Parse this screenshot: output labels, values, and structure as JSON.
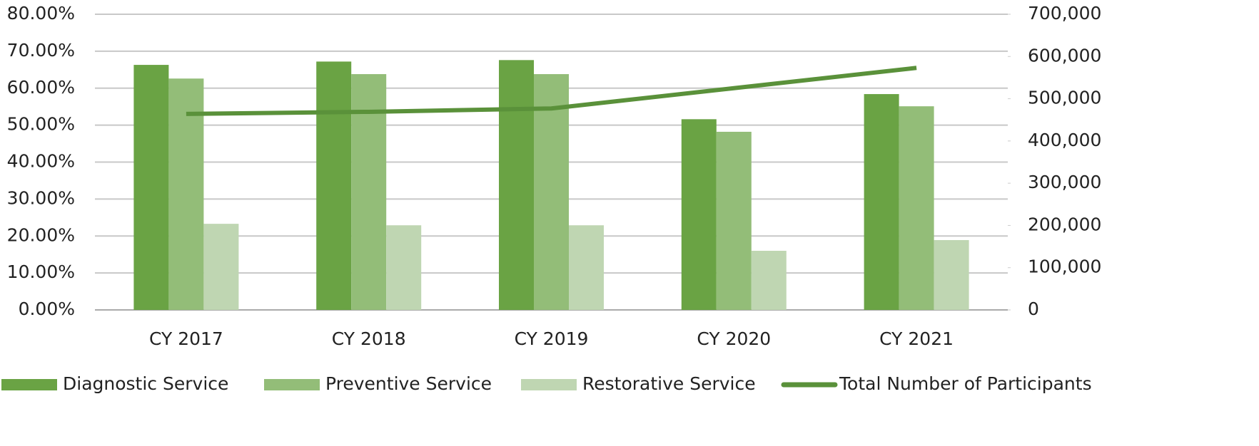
{
  "chart_data": {
    "type": "bar",
    "categories": [
      "CY 2017",
      "CY 2018",
      "CY 2019",
      "CY 2020",
      "CY 2021"
    ],
    "series": [
      {
        "name": "Diagnostic Service",
        "color": "#6aa344",
        "values": [
          66.3,
          67.2,
          67.6,
          51.6,
          58.4
        ]
      },
      {
        "name": "Preventive Service",
        "color": "#93bd78",
        "values": [
          62.6,
          63.8,
          63.8,
          48.2,
          55.1
        ]
      },
      {
        "name": "Restorative Service",
        "color": "#bfd6b2",
        "values": [
          23.3,
          22.9,
          22.9,
          16.0,
          18.9
        ]
      },
      {
        "name": "Total Number of Participants",
        "color": "#5a913a",
        "type": "line",
        "axis": "y2",
        "values": [
          464000,
          469000,
          477000,
          525000,
          573000
        ]
      }
    ],
    "ylim": [
      0,
      80
    ],
    "yticks": [
      {
        "value": 0,
        "label": "0.00%"
      },
      {
        "value": 10,
        "label": "10.00%"
      },
      {
        "value": 20,
        "label": "20.00%"
      },
      {
        "value": 30,
        "label": "30.00%"
      },
      {
        "value": 40,
        "label": "40.00%"
      },
      {
        "value": 50,
        "label": "50.00%"
      },
      {
        "value": 60,
        "label": "60.00%"
      },
      {
        "value": 70,
        "label": "70.00%"
      },
      {
        "value": 80,
        "label": "80.00%"
      }
    ],
    "y2lim": [
      0,
      700000
    ],
    "y2ticks": [
      0,
      {
        "value": 100000,
        "label": "100,000"
      },
      {
        "value": 200000,
        "label": "200,000"
      },
      {
        "value": 300000,
        "label": "300,000"
      },
      {
        "value": 400000,
        "label": "400,000"
      },
      {
        "value": 500000,
        "label": "500,000"
      },
      {
        "value": 600000,
        "label": "600,000"
      },
      {
        "value": 700000,
        "label": "700,000"
      }
    ],
    "grid": true,
    "legend": "bottom"
  }
}
